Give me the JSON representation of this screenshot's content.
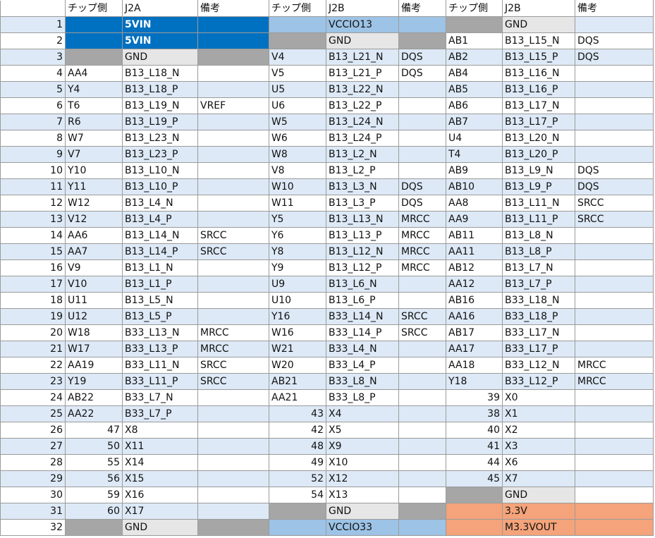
{
  "header": [
    "",
    "チップ側",
    "J2A",
    "備考",
    "チップ側",
    "J2B",
    "備考",
    "チップ側",
    "J2B",
    "備考"
  ],
  "rows": [
    [
      {
        "t": "1"
      },
      {
        "t": "",
        "c": "blue"
      },
      {
        "t": "5VIN",
        "c": "blue"
      },
      {
        "t": "",
        "c": "blue"
      },
      {
        "t": "",
        "c": "ltblue"
      },
      {
        "t": "VCCIO13",
        "c": "ltblue"
      },
      {
        "t": "",
        "c": "ltblue"
      },
      {
        "t": "",
        "c": "gray"
      },
      {
        "t": "GND",
        "c": "ltgray"
      },
      {
        "t": ""
      }
    ],
    [
      {
        "t": "2"
      },
      {
        "t": "",
        "c": "blue"
      },
      {
        "t": "5VIN",
        "c": "blue"
      },
      {
        "t": "",
        "c": "blue"
      },
      {
        "t": "",
        "c": "gray"
      },
      {
        "t": "GND",
        "c": "ltgray"
      },
      {
        "t": "",
        "c": "gray"
      },
      {
        "t": "AB1"
      },
      {
        "t": "B13_L15_N"
      },
      {
        "t": "DQS"
      }
    ],
    [
      {
        "t": "3"
      },
      {
        "t": "",
        "c": "gray"
      },
      {
        "t": "GND",
        "c": "ltgray"
      },
      {
        "t": "",
        "c": "gray"
      },
      {
        "t": "V4"
      },
      {
        "t": "B13_L21_N"
      },
      {
        "t": "DQS"
      },
      {
        "t": "AB2"
      },
      {
        "t": "B13_L15_P"
      },
      {
        "t": "DQS"
      }
    ],
    [
      {
        "t": "4"
      },
      {
        "t": "AA4"
      },
      {
        "t": "B13_L18_N"
      },
      {
        "t": ""
      },
      {
        "t": "V5"
      },
      {
        "t": "B13_L21_P"
      },
      {
        "t": "DQS"
      },
      {
        "t": "AB4"
      },
      {
        "t": "B13_L16_N"
      },
      {
        "t": ""
      }
    ],
    [
      {
        "t": "5"
      },
      {
        "t": "Y4"
      },
      {
        "t": "B13_L18_P"
      },
      {
        "t": ""
      },
      {
        "t": "U5"
      },
      {
        "t": "B13_L22_N"
      },
      {
        "t": ""
      },
      {
        "t": "AB5"
      },
      {
        "t": "B13_L16_P"
      },
      {
        "t": ""
      }
    ],
    [
      {
        "t": "6"
      },
      {
        "t": "T6"
      },
      {
        "t": "B13_L19_N"
      },
      {
        "t": "VREF"
      },
      {
        "t": "U6"
      },
      {
        "t": "B13_L22_P"
      },
      {
        "t": ""
      },
      {
        "t": "AB6"
      },
      {
        "t": "B13_L17_N"
      },
      {
        "t": ""
      }
    ],
    [
      {
        "t": "7"
      },
      {
        "t": "R6"
      },
      {
        "t": "B13_L19_P"
      },
      {
        "t": ""
      },
      {
        "t": "W5"
      },
      {
        "t": "B13_L24_N"
      },
      {
        "t": ""
      },
      {
        "t": "AB7"
      },
      {
        "t": "B13_L17_P"
      },
      {
        "t": ""
      }
    ],
    [
      {
        "t": "8"
      },
      {
        "t": "W7"
      },
      {
        "t": "B13_L23_N"
      },
      {
        "t": ""
      },
      {
        "t": "W6"
      },
      {
        "t": "B13_L24_P"
      },
      {
        "t": ""
      },
      {
        "t": "U4"
      },
      {
        "t": "B13_L20_N"
      },
      {
        "t": ""
      }
    ],
    [
      {
        "t": "9"
      },
      {
        "t": "V7"
      },
      {
        "t": "B13_L23_P"
      },
      {
        "t": ""
      },
      {
        "t": "W8"
      },
      {
        "t": "B13_L2_N"
      },
      {
        "t": ""
      },
      {
        "t": "T4"
      },
      {
        "t": "B13_L20_P"
      },
      {
        "t": ""
      }
    ],
    [
      {
        "t": "10"
      },
      {
        "t": "Y10"
      },
      {
        "t": "B13_L10_N"
      },
      {
        "t": ""
      },
      {
        "t": "V8"
      },
      {
        "t": "B13_L2_P"
      },
      {
        "t": ""
      },
      {
        "t": "AB9"
      },
      {
        "t": "B13_L9_N"
      },
      {
        "t": "DQS"
      }
    ],
    [
      {
        "t": "11"
      },
      {
        "t": "Y11"
      },
      {
        "t": "B13_L10_P"
      },
      {
        "t": ""
      },
      {
        "t": "W10"
      },
      {
        "t": "B13_L3_N"
      },
      {
        "t": "DQS"
      },
      {
        "t": "AB10"
      },
      {
        "t": "B13_L9_P"
      },
      {
        "t": "DQS"
      }
    ],
    [
      {
        "t": "12"
      },
      {
        "t": "W12"
      },
      {
        "t": "B13_L4_N"
      },
      {
        "t": ""
      },
      {
        "t": "W11"
      },
      {
        "t": "B13_L3_P"
      },
      {
        "t": "DQS"
      },
      {
        "t": "AA8"
      },
      {
        "t": "B13_L11_N"
      },
      {
        "t": "SRCC"
      }
    ],
    [
      {
        "t": "13"
      },
      {
        "t": "V12"
      },
      {
        "t": "B13_L4_P"
      },
      {
        "t": ""
      },
      {
        "t": "Y5"
      },
      {
        "t": "B13_L13_N"
      },
      {
        "t": "MRCC"
      },
      {
        "t": "AA9"
      },
      {
        "t": "B13_L11_P"
      },
      {
        "t": "SRCC"
      }
    ],
    [
      {
        "t": "14"
      },
      {
        "t": "AA6"
      },
      {
        "t": "B13_L14_N"
      },
      {
        "t": "SRCC"
      },
      {
        "t": "Y6"
      },
      {
        "t": "B13_L13_P"
      },
      {
        "t": "MRCC"
      },
      {
        "t": "AB11"
      },
      {
        "t": "B13_L8_N"
      },
      {
        "t": ""
      }
    ],
    [
      {
        "t": "15"
      },
      {
        "t": "AA7"
      },
      {
        "t": "B13_L14_P"
      },
      {
        "t": "SRCC"
      },
      {
        "t": "Y8"
      },
      {
        "t": "B13_L12_N"
      },
      {
        "t": "MRCC"
      },
      {
        "t": "AA11"
      },
      {
        "t": "B13_L8_P"
      },
      {
        "t": ""
      }
    ],
    [
      {
        "t": "16"
      },
      {
        "t": "V9"
      },
      {
        "t": "B13_L1_N"
      },
      {
        "t": ""
      },
      {
        "t": "Y9"
      },
      {
        "t": "B13_L12_P"
      },
      {
        "t": "MRCC"
      },
      {
        "t": "AB12"
      },
      {
        "t": "B13_L7_N"
      },
      {
        "t": ""
      }
    ],
    [
      {
        "t": "17"
      },
      {
        "t": "V10"
      },
      {
        "t": "B13_L1_P"
      },
      {
        "t": ""
      },
      {
        "t": "U9"
      },
      {
        "t": "B13_L6_N"
      },
      {
        "t": ""
      },
      {
        "t": "AA12"
      },
      {
        "t": "B13_L7_P"
      },
      {
        "t": ""
      }
    ],
    [
      {
        "t": "18"
      },
      {
        "t": "U11"
      },
      {
        "t": "B13_L5_N"
      },
      {
        "t": ""
      },
      {
        "t": "U10"
      },
      {
        "t": "B13_L6_P"
      },
      {
        "t": ""
      },
      {
        "t": "AB16"
      },
      {
        "t": "B33_L18_N"
      },
      {
        "t": ""
      }
    ],
    [
      {
        "t": "19"
      },
      {
        "t": "U12"
      },
      {
        "t": "B13_L5_P"
      },
      {
        "t": ""
      },
      {
        "t": "Y16"
      },
      {
        "t": "B33_L14_N"
      },
      {
        "t": "SRCC"
      },
      {
        "t": "AA16"
      },
      {
        "t": "B33_L18_P"
      },
      {
        "t": ""
      }
    ],
    [
      {
        "t": "20"
      },
      {
        "t": "W18"
      },
      {
        "t": "B33_L13_N"
      },
      {
        "t": "MRCC"
      },
      {
        "t": "W16"
      },
      {
        "t": "B33_L14_P"
      },
      {
        "t": "SRCC"
      },
      {
        "t": "AB17"
      },
      {
        "t": "B33_L17_N"
      },
      {
        "t": ""
      }
    ],
    [
      {
        "t": "21"
      },
      {
        "t": "W17"
      },
      {
        "t": "B33_L13_P"
      },
      {
        "t": "MRCC"
      },
      {
        "t": "W21"
      },
      {
        "t": "B33_L4_N"
      },
      {
        "t": ""
      },
      {
        "t": "AA17"
      },
      {
        "t": "B33_L17_P"
      },
      {
        "t": ""
      }
    ],
    [
      {
        "t": "22"
      },
      {
        "t": "AA19"
      },
      {
        "t": "B33_L11_N"
      },
      {
        "t": "SRCC"
      },
      {
        "t": "W20"
      },
      {
        "t": "B33_L4_P"
      },
      {
        "t": ""
      },
      {
        "t": "AA18"
      },
      {
        "t": "B33_L12_N"
      },
      {
        "t": "MRCC"
      }
    ],
    [
      {
        "t": "23"
      },
      {
        "t": "Y19"
      },
      {
        "t": "B33_L11_P"
      },
      {
        "t": "SRCC"
      },
      {
        "t": "AB21"
      },
      {
        "t": "B33_L8_N"
      },
      {
        "t": ""
      },
      {
        "t": "Y18"
      },
      {
        "t": "B33_L12_P"
      },
      {
        "t": "MRCC"
      }
    ],
    [
      {
        "t": "24"
      },
      {
        "t": "AB22"
      },
      {
        "t": "B33_L7_N"
      },
      {
        "t": ""
      },
      {
        "t": "AA21"
      },
      {
        "t": "B33_L8_P"
      },
      {
        "t": ""
      },
      {
        "t": "39",
        "n": 1
      },
      {
        "t": "X0"
      },
      {
        "t": ""
      }
    ],
    [
      {
        "t": "25"
      },
      {
        "t": "AA22"
      },
      {
        "t": "B33_L7_P"
      },
      {
        "t": ""
      },
      {
        "t": "43",
        "n": 1
      },
      {
        "t": "X4"
      },
      {
        "t": ""
      },
      {
        "t": "38",
        "n": 1
      },
      {
        "t": "X1"
      },
      {
        "t": ""
      }
    ],
    [
      {
        "t": "26"
      },
      {
        "t": "47",
        "n": 1
      },
      {
        "t": "X8"
      },
      {
        "t": ""
      },
      {
        "t": "42",
        "n": 1
      },
      {
        "t": "X5"
      },
      {
        "t": ""
      },
      {
        "t": "40",
        "n": 1
      },
      {
        "t": "X2"
      },
      {
        "t": ""
      }
    ],
    [
      {
        "t": "27"
      },
      {
        "t": "50",
        "n": 1
      },
      {
        "t": "X11"
      },
      {
        "t": ""
      },
      {
        "t": "48",
        "n": 1
      },
      {
        "t": "X9"
      },
      {
        "t": ""
      },
      {
        "t": "41",
        "n": 1
      },
      {
        "t": "X3"
      },
      {
        "t": ""
      }
    ],
    [
      {
        "t": "28"
      },
      {
        "t": "55",
        "n": 1
      },
      {
        "t": "X14"
      },
      {
        "t": ""
      },
      {
        "t": "49",
        "n": 1
      },
      {
        "t": "X10"
      },
      {
        "t": ""
      },
      {
        "t": "44",
        "n": 1
      },
      {
        "t": "X6"
      },
      {
        "t": ""
      }
    ],
    [
      {
        "t": "29"
      },
      {
        "t": "56",
        "n": 1
      },
      {
        "t": "X15"
      },
      {
        "t": ""
      },
      {
        "t": "52",
        "n": 1
      },
      {
        "t": "X12"
      },
      {
        "t": ""
      },
      {
        "t": "45",
        "n": 1
      },
      {
        "t": "X7"
      },
      {
        "t": ""
      }
    ],
    [
      {
        "t": "30"
      },
      {
        "t": "59",
        "n": 1
      },
      {
        "t": "X16"
      },
      {
        "t": ""
      },
      {
        "t": "54",
        "n": 1
      },
      {
        "t": "X13"
      },
      {
        "t": ""
      },
      {
        "t": "",
        "c": "gray"
      },
      {
        "t": "GND",
        "c": "ltgray"
      },
      {
        "t": ""
      }
    ],
    [
      {
        "t": "31"
      },
      {
        "t": "60",
        "n": 1
      },
      {
        "t": "X17"
      },
      {
        "t": ""
      },
      {
        "t": "",
        "c": "gray"
      },
      {
        "t": "GND",
        "c": "ltgray"
      },
      {
        "t": "",
        "c": "gray"
      },
      {
        "t": "",
        "c": "orange"
      },
      {
        "t": "3.3V",
        "c": "orange"
      },
      {
        "t": "",
        "c": "orange"
      }
    ],
    [
      {
        "t": "32"
      },
      {
        "t": "",
        "c": "gray"
      },
      {
        "t": "GND",
        "c": "ltgray"
      },
      {
        "t": "",
        "c": "gray"
      },
      {
        "t": "",
        "c": "ltblue"
      },
      {
        "t": "VCCIO33",
        "c": "ltblue"
      },
      {
        "t": "",
        "c": "ltblue"
      },
      {
        "t": "",
        "c": "orange"
      },
      {
        "t": "M3.3VOUT",
        "c": "orange"
      },
      {
        "t": "",
        "c": "orange"
      }
    ]
  ]
}
